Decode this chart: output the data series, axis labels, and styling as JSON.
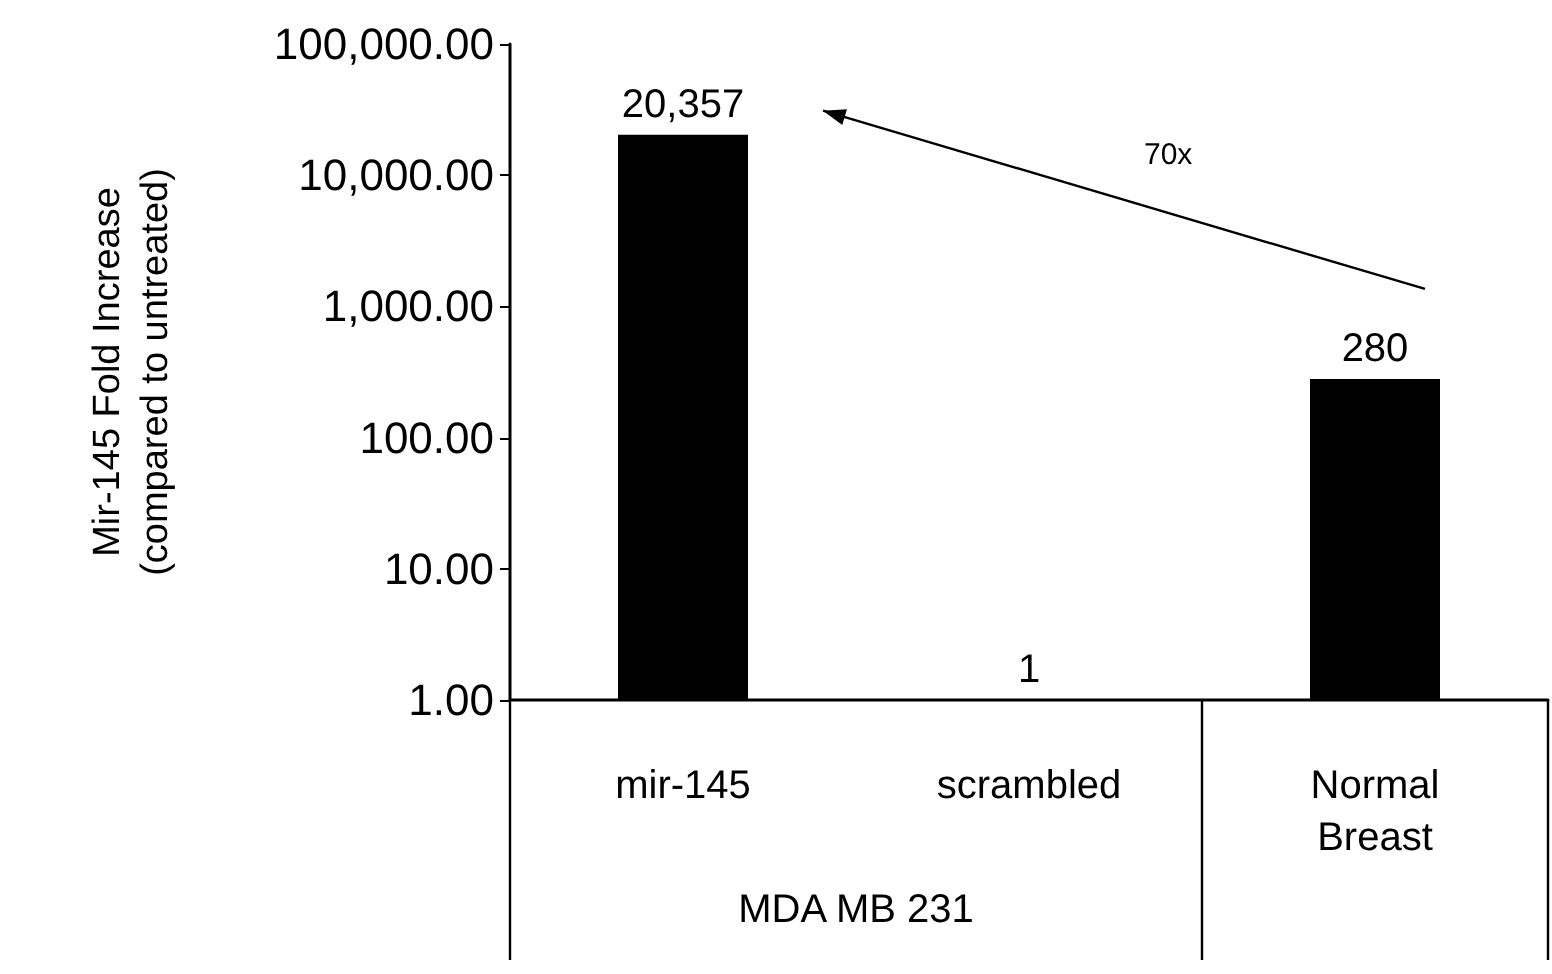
{
  "chart_data": {
    "type": "bar",
    "ylabel": "Mir-145 Fold Increase\n(compared to untreated)",
    "categories": [
      "mir-145",
      "scrambled",
      "Normal Breast"
    ],
    "values": [
      20357,
      1,
      280
    ],
    "color": "#000000",
    "value_labels": [
      "20,357",
      "1",
      "280"
    ],
    "log": true,
    "ylim": [
      1,
      100000
    ],
    "yticks": [
      {
        "value": 1,
        "label": "1.00"
      },
      {
        "value": 10,
        "label": "10.00"
      },
      {
        "value": 100,
        "label": "100.00"
      },
      {
        "value": 1000,
        "label": "1,000.00"
      },
      {
        "value": 10000,
        "label": "10,000.00"
      },
      {
        "value": 100000,
        "label": "100,000.00"
      }
    ],
    "grid": false,
    "annotations": [
      "70x",
      "MDA MB 231"
    ]
  }
}
